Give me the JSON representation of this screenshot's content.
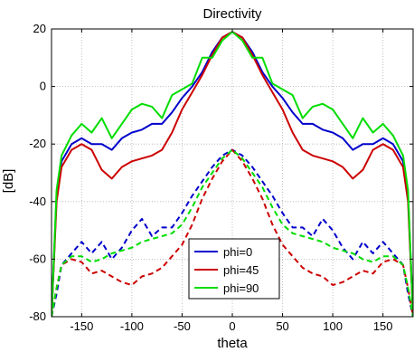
{
  "chart_data": {
    "type": "line",
    "title": "Directivity",
    "xlabel": "theta",
    "ylabel": "[dB]",
    "xlim": [
      -180,
      180
    ],
    "ylim": [
      -80,
      20
    ],
    "x_ticks": [
      -150,
      -100,
      -50,
      0,
      50,
      100,
      150
    ],
    "y_ticks": [
      -80,
      -60,
      -40,
      -20,
      0,
      20
    ],
    "grid": true,
    "legend_position": "bottom-center",
    "legend": [
      "phi=0",
      "phi=45",
      "phi=90"
    ],
    "x": [
      -180,
      -175,
      -170,
      -160,
      -150,
      -140,
      -130,
      -120,
      -110,
      -100,
      -90,
      -80,
      -70,
      -60,
      -50,
      -40,
      -30,
      -20,
      -10,
      0,
      10,
      20,
      30,
      40,
      50,
      60,
      70,
      80,
      90,
      100,
      110,
      120,
      130,
      140,
      150,
      160,
      170,
      175,
      180
    ],
    "series": [
      {
        "name": "phi=0",
        "style": "solid",
        "color": "#0000cc",
        "values": [
          -80,
          -38,
          -26,
          -20,
          -18,
          -20,
          -20,
          -22,
          -18,
          -16,
          -15,
          -13,
          -13,
          -9,
          -4,
          0,
          5,
          12,
          17,
          19,
          17,
          12,
          5,
          0,
          -4,
          -9,
          -13,
          -13,
          -15,
          -16,
          -18,
          -22,
          -20,
          -20,
          -18,
          -20,
          -26,
          -38,
          -80
        ]
      },
      {
        "name": "phi=45",
        "style": "solid",
        "color": "#cc0000",
        "values": [
          -80,
          -40,
          -28,
          -22,
          -20,
          -22,
          -29,
          -32,
          -28,
          -26,
          -25,
          -24,
          -22,
          -16,
          -8,
          -2,
          4,
          11,
          17,
          19,
          17,
          11,
          4,
          -2,
          -8,
          -16,
          -22,
          -24,
          -25,
          -26,
          -28,
          -32,
          -29,
          -22,
          -20,
          -22,
          -28,
          -40,
          -80
        ]
      },
      {
        "name": "phi=90",
        "style": "solid",
        "color": "#00dd00",
        "values": [
          -80,
          -36,
          -24,
          -17,
          -13,
          -16,
          -11,
          -18,
          -13,
          -8,
          -6,
          -7,
          -11,
          -3,
          -1,
          1,
          10,
          10,
          16,
          19,
          16,
          10,
          10,
          1,
          -1,
          -3,
          -11,
          -7,
          -6,
          -8,
          -13,
          -18,
          -11,
          -16,
          -13,
          -17,
          -24,
          -36,
          -80
        ]
      },
      {
        "name": "phi=0 (dashed)",
        "style": "dashed",
        "color": "#0000cc",
        "values": [
          -80,
          -72,
          -62,
          -58,
          -54,
          -58,
          -54,
          -60,
          -56,
          -50,
          -46,
          -52,
          -49,
          -49,
          -44,
          -38,
          -33,
          -28,
          -24,
          -22,
          -24,
          -28,
          -33,
          -38,
          -44,
          -49,
          -49,
          -52,
          -46,
          -50,
          -56,
          -60,
          -54,
          -58,
          -54,
          -58,
          -62,
          -72,
          -80
        ]
      },
      {
        "name": "phi=45 (dashed)",
        "style": "dashed",
        "color": "#cc0000",
        "values": [
          -80,
          -70,
          -62,
          -60,
          -61,
          -65,
          -64,
          -66,
          -68,
          -69,
          -66,
          -65,
          -63,
          -59,
          -55,
          -48,
          -39,
          -32,
          -26,
          -22,
          -26,
          -32,
          -39,
          -48,
          -55,
          -59,
          -63,
          -65,
          -66,
          -69,
          -68,
          -66,
          -64,
          -65,
          -61,
          -60,
          -62,
          -70,
          -80
        ]
      },
      {
        "name": "phi=90 (dashed)",
        "style": "dashed",
        "color": "#00dd00",
        "values": [
          -80,
          -70,
          -62,
          -59,
          -59,
          -61,
          -60,
          -58,
          -57,
          -56,
          -54,
          -53,
          -52,
          -51,
          -48,
          -42,
          -35,
          -30,
          -25,
          -22,
          -25,
          -30,
          -35,
          -42,
          -48,
          -51,
          -52,
          -53,
          -54,
          -56,
          -57,
          -58,
          -60,
          -61,
          -59,
          -59,
          -62,
          -70,
          -80
        ]
      }
    ]
  }
}
